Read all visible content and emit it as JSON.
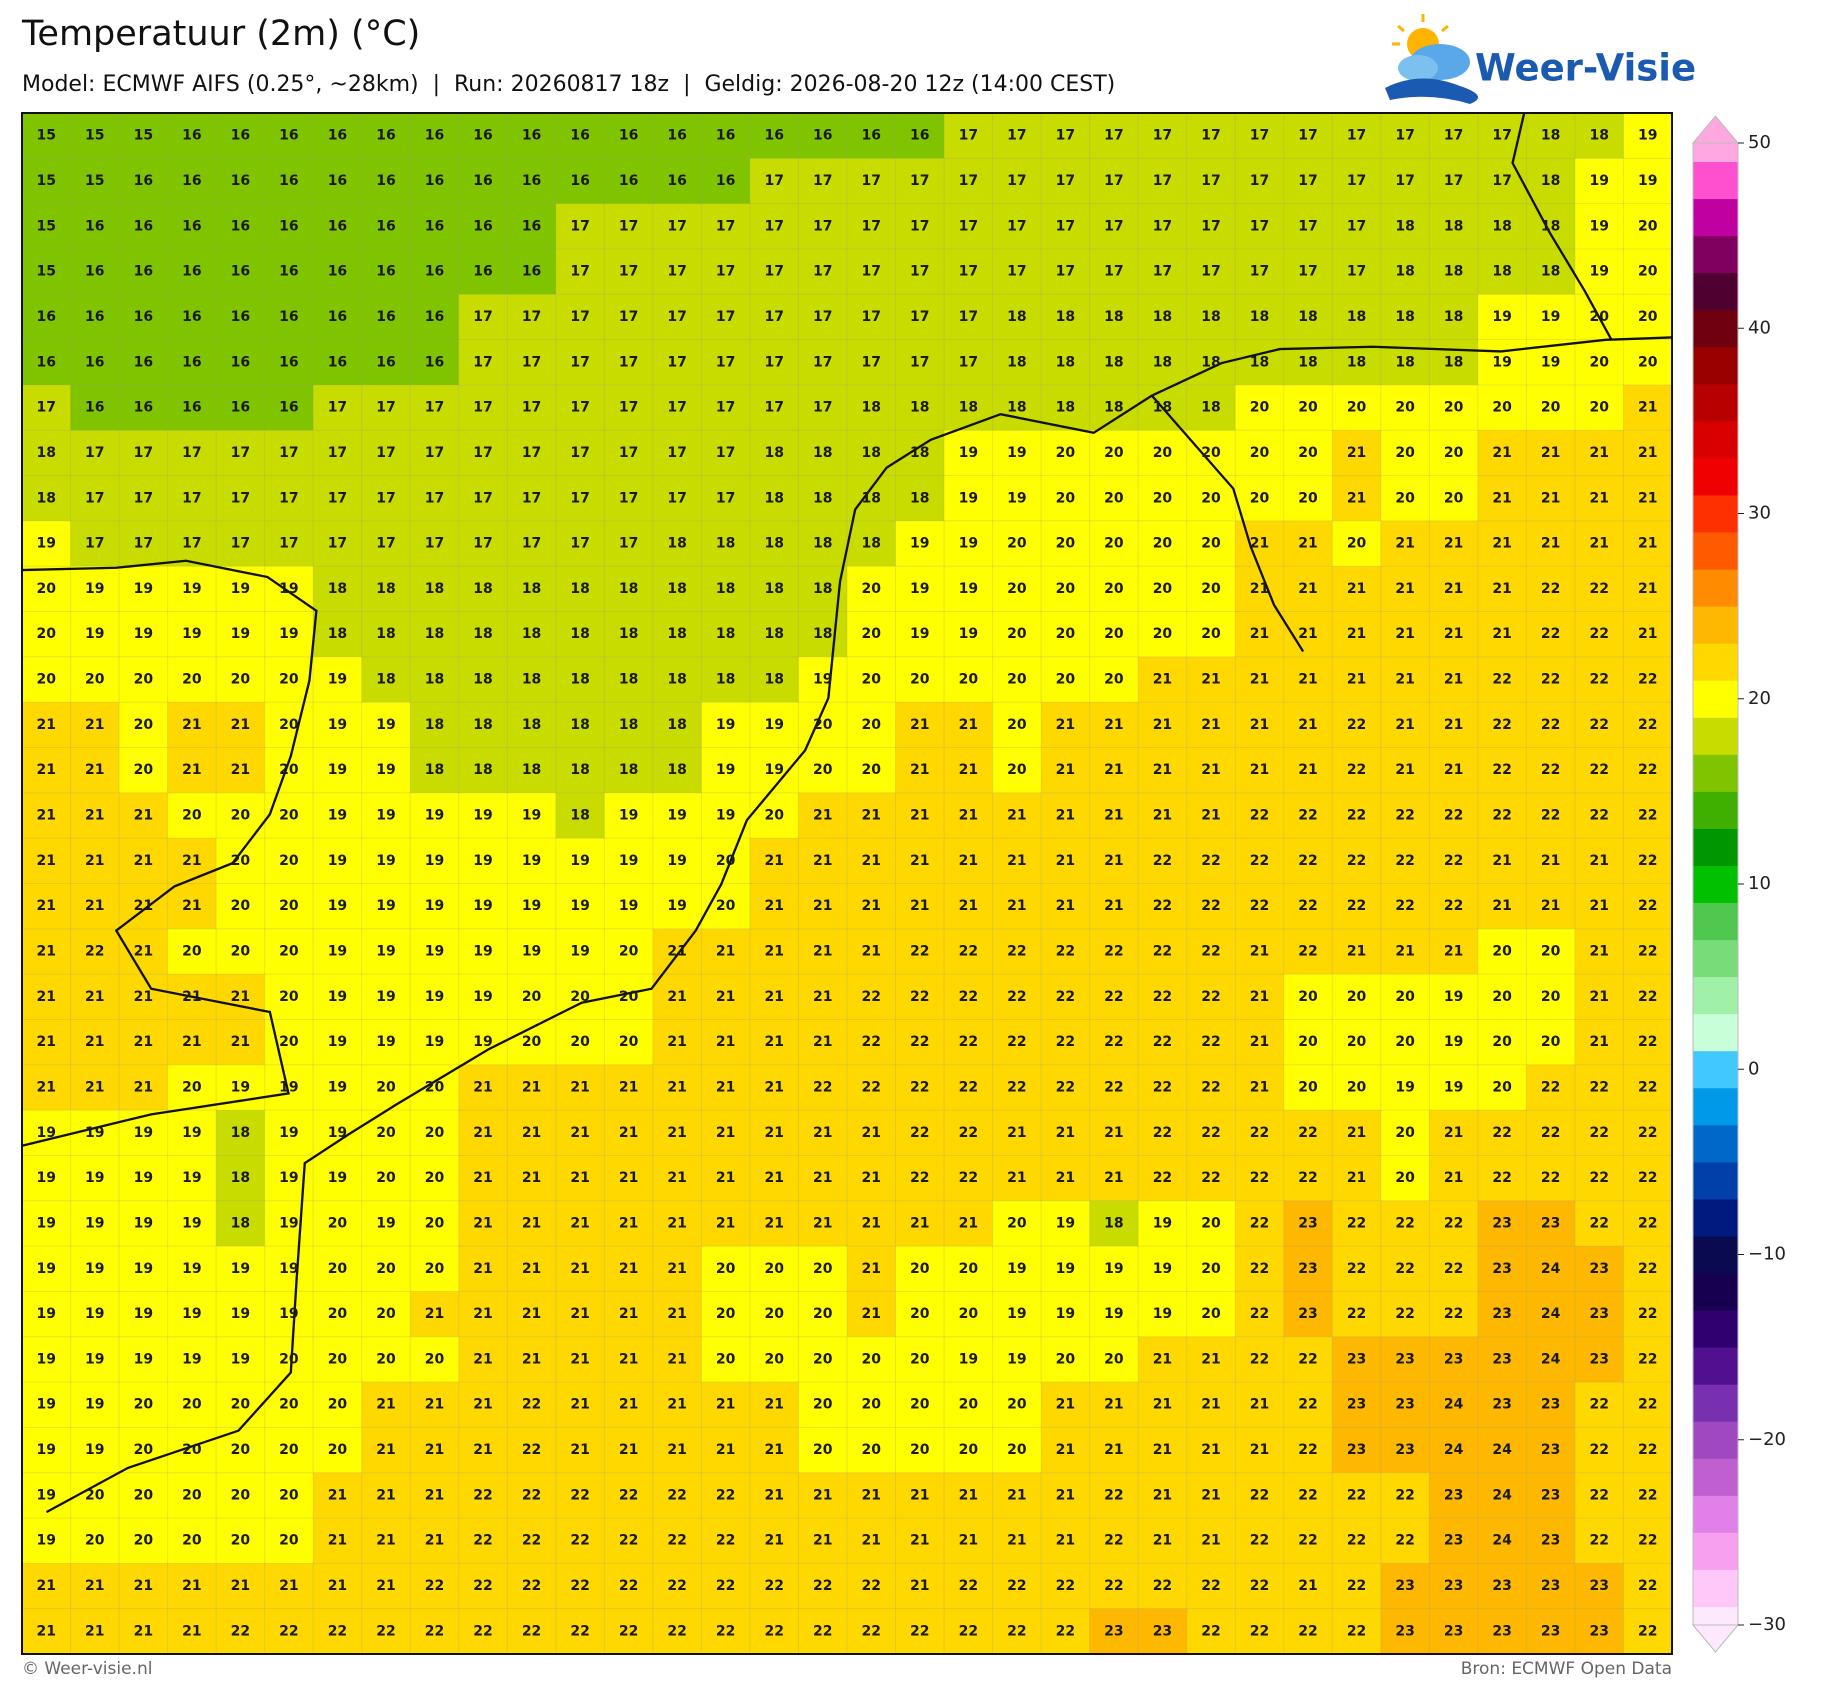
{
  "header": {
    "title": "Temperatuur (2m) (°C)",
    "subtitle": "Model: ECMWF AIFS (0.25°, ~28km)  |  Run: 20260817 18z  |  Geldig: 2026-08-20 12z (14:00 CEST)"
  },
  "logo": "Weer-Visie",
  "map": {
    "values": [
      [
        15,
        15,
        15,
        16,
        16,
        16,
        16,
        16,
        16,
        16,
        16,
        16,
        16,
        16,
        16,
        16,
        16,
        16,
        16,
        17,
        17,
        17,
        17,
        17,
        17,
        17,
        17,
        17,
        17,
        17,
        17,
        18,
        18,
        19
      ],
      [
        15,
        15,
        16,
        16,
        16,
        16,
        16,
        16,
        16,
        16,
        16,
        16,
        16,
        16,
        16,
        17,
        17,
        17,
        17,
        17,
        17,
        17,
        17,
        17,
        17,
        17,
        17,
        17,
        17,
        17,
        17,
        18,
        19,
        19
      ],
      [
        15,
        16,
        16,
        16,
        16,
        16,
        16,
        16,
        16,
        16,
        16,
        17,
        17,
        17,
        17,
        17,
        17,
        17,
        17,
        17,
        17,
        17,
        17,
        17,
        17,
        17,
        17,
        17,
        18,
        18,
        18,
        18,
        19,
        20
      ],
      [
        15,
        16,
        16,
        16,
        16,
        16,
        16,
        16,
        16,
        16,
        16,
        17,
        17,
        17,
        17,
        17,
        17,
        17,
        17,
        17,
        17,
        17,
        17,
        17,
        17,
        17,
        17,
        17,
        18,
        18,
        18,
        18,
        19,
        20
      ],
      [
        16,
        16,
        16,
        16,
        16,
        16,
        16,
        16,
        16,
        17,
        17,
        17,
        17,
        17,
        17,
        17,
        17,
        17,
        17,
        17,
        18,
        18,
        18,
        18,
        18,
        18,
        18,
        18,
        18,
        18,
        19,
        19,
        20,
        20
      ],
      [
        16,
        16,
        16,
        16,
        16,
        16,
        16,
        16,
        16,
        17,
        17,
        17,
        17,
        17,
        17,
        17,
        17,
        17,
        17,
        17,
        18,
        18,
        18,
        18,
        18,
        18,
        18,
        18,
        18,
        18,
        19,
        19,
        20,
        20
      ],
      [
        17,
        16,
        16,
        16,
        16,
        16,
        17,
        17,
        17,
        17,
        17,
        17,
        17,
        17,
        17,
        17,
        17,
        18,
        18,
        18,
        18,
        18,
        18,
        18,
        18,
        20,
        20,
        20,
        20,
        20,
        20,
        20,
        20,
        21
      ],
      [
        18,
        17,
        17,
        17,
        17,
        17,
        17,
        17,
        17,
        17,
        17,
        17,
        17,
        17,
        17,
        18,
        18,
        18,
        18,
        19,
        19,
        20,
        20,
        20,
        20,
        20,
        20,
        21,
        20,
        20,
        21,
        21,
        21,
        21
      ],
      [
        18,
        17,
        17,
        17,
        17,
        17,
        17,
        17,
        17,
        17,
        17,
        17,
        17,
        17,
        17,
        18,
        18,
        18,
        18,
        19,
        19,
        20,
        20,
        20,
        20,
        20,
        20,
        21,
        20,
        20,
        21,
        21,
        21,
        21
      ],
      [
        19,
        17,
        17,
        17,
        17,
        17,
        17,
        17,
        17,
        17,
        17,
        17,
        17,
        18,
        18,
        18,
        18,
        18,
        19,
        19,
        20,
        20,
        20,
        20,
        20,
        21,
        21,
        20,
        21,
        21,
        21,
        21,
        21,
        21
      ],
      [
        20,
        19,
        19,
        19,
        19,
        19,
        18,
        18,
        18,
        18,
        18,
        18,
        18,
        18,
        18,
        18,
        18,
        20,
        19,
        19,
        20,
        20,
        20,
        20,
        20,
        21,
        21,
        21,
        21,
        21,
        21,
        22,
        22,
        21
      ],
      [
        20,
        19,
        19,
        19,
        19,
        19,
        18,
        18,
        18,
        18,
        18,
        18,
        18,
        18,
        18,
        18,
        18,
        20,
        19,
        19,
        20,
        20,
        20,
        20,
        20,
        21,
        21,
        21,
        21,
        21,
        21,
        22,
        22,
        21
      ],
      [
        20,
        20,
        20,
        20,
        20,
        20,
        19,
        18,
        18,
        18,
        18,
        18,
        18,
        18,
        18,
        18,
        19,
        20,
        20,
        20,
        20,
        20,
        20,
        21,
        21,
        21,
        21,
        21,
        21,
        21,
        22,
        22,
        22,
        22
      ],
      [
        21,
        21,
        20,
        21,
        21,
        20,
        19,
        19,
        18,
        18,
        18,
        18,
        18,
        18,
        19,
        19,
        20,
        20,
        21,
        21,
        20,
        21,
        21,
        21,
        21,
        21,
        21,
        22,
        21,
        21,
        22,
        22,
        22,
        22
      ],
      [
        21,
        21,
        20,
        21,
        21,
        20,
        19,
        19,
        18,
        18,
        18,
        18,
        18,
        18,
        19,
        19,
        20,
        20,
        21,
        21,
        20,
        21,
        21,
        21,
        21,
        21,
        21,
        22,
        21,
        21,
        22,
        22,
        22,
        22
      ],
      [
        21,
        21,
        21,
        20,
        20,
        20,
        19,
        19,
        19,
        19,
        19,
        18,
        19,
        19,
        19,
        20,
        21,
        21,
        21,
        21,
        21,
        21,
        21,
        21,
        21,
        22,
        22,
        22,
        22,
        22,
        22,
        22,
        22,
        22
      ],
      [
        21,
        21,
        21,
        21,
        20,
        20,
        19,
        19,
        19,
        19,
        19,
        19,
        19,
        19,
        20,
        21,
        21,
        21,
        21,
        21,
        21,
        21,
        21,
        22,
        22,
        22,
        22,
        22,
        22,
        22,
        21,
        21,
        21,
        22
      ],
      [
        21,
        21,
        21,
        21,
        20,
        20,
        19,
        19,
        19,
        19,
        19,
        19,
        19,
        19,
        20,
        21,
        21,
        21,
        21,
        21,
        21,
        21,
        21,
        22,
        22,
        22,
        22,
        22,
        22,
        22,
        21,
        21,
        21,
        22
      ],
      [
        21,
        22,
        21,
        20,
        20,
        20,
        19,
        19,
        19,
        19,
        19,
        19,
        20,
        21,
        21,
        21,
        21,
        21,
        22,
        22,
        22,
        22,
        22,
        22,
        22,
        21,
        22,
        21,
        21,
        21,
        20,
        20,
        21,
        22
      ],
      [
        21,
        21,
        21,
        21,
        21,
        20,
        19,
        19,
        19,
        19,
        20,
        20,
        20,
        21,
        21,
        21,
        21,
        22,
        22,
        22,
        22,
        22,
        22,
        22,
        22,
        21,
        20,
        20,
        20,
        19,
        20,
        20,
        21,
        22
      ],
      [
        21,
        21,
        21,
        21,
        21,
        20,
        19,
        19,
        19,
        19,
        20,
        20,
        20,
        21,
        21,
        21,
        21,
        22,
        22,
        22,
        22,
        22,
        22,
        22,
        22,
        21,
        20,
        20,
        20,
        19,
        20,
        20,
        21,
        22
      ],
      [
        21,
        21,
        21,
        20,
        19,
        19,
        19,
        20,
        20,
        21,
        21,
        21,
        21,
        21,
        21,
        21,
        22,
        22,
        22,
        22,
        22,
        22,
        22,
        22,
        22,
        21,
        20,
        20,
        19,
        19,
        20,
        22,
        22,
        22
      ],
      [
        19,
        19,
        19,
        19,
        18,
        19,
        19,
        20,
        20,
        21,
        21,
        21,
        21,
        21,
        21,
        21,
        21,
        21,
        22,
        22,
        21,
        21,
        21,
        22,
        22,
        22,
        22,
        21,
        20,
        21,
        22,
        22,
        22,
        22
      ],
      [
        19,
        19,
        19,
        19,
        18,
        19,
        19,
        20,
        20,
        21,
        21,
        21,
        21,
        21,
        21,
        21,
        21,
        21,
        22,
        22,
        21,
        21,
        21,
        22,
        22,
        22,
        22,
        21,
        20,
        21,
        22,
        22,
        22,
        22
      ],
      [
        19,
        19,
        19,
        19,
        18,
        19,
        20,
        19,
        20,
        21,
        21,
        21,
        21,
        21,
        21,
        21,
        21,
        21,
        21,
        21,
        20,
        19,
        18,
        19,
        20,
        22,
        23,
        22,
        22,
        22,
        23,
        23,
        22,
        22
      ],
      [
        19,
        19,
        19,
        19,
        19,
        19,
        20,
        20,
        20,
        21,
        21,
        21,
        21,
        21,
        20,
        20,
        20,
        21,
        20,
        20,
        19,
        19,
        19,
        19,
        20,
        22,
        23,
        22,
        22,
        22,
        23,
        24,
        23,
        22
      ],
      [
        19,
        19,
        19,
        19,
        19,
        19,
        20,
        20,
        21,
        21,
        21,
        21,
        21,
        21,
        20,
        20,
        20,
        21,
        20,
        20,
        19,
        19,
        19,
        19,
        20,
        22,
        23,
        22,
        22,
        22,
        23,
        24,
        23,
        22
      ],
      [
        19,
        19,
        19,
        19,
        19,
        20,
        20,
        20,
        20,
        21,
        21,
        21,
        21,
        21,
        20,
        20,
        20,
        20,
        20,
        19,
        19,
        20,
        20,
        21,
        21,
        22,
        22,
        23,
        23,
        23,
        23,
        24,
        23,
        22
      ],
      [
        19,
        19,
        20,
        20,
        20,
        20,
        20,
        21,
        21,
        21,
        22,
        21,
        21,
        21,
        21,
        21,
        20,
        20,
        20,
        20,
        20,
        21,
        21,
        21,
        21,
        21,
        22,
        23,
        23,
        24,
        23,
        23,
        22,
        22
      ],
      [
        19,
        19,
        20,
        20,
        20,
        20,
        20,
        21,
        21,
        21,
        22,
        21,
        21,
        21,
        21,
        21,
        20,
        20,
        20,
        20,
        20,
        21,
        21,
        21,
        21,
        21,
        22,
        23,
        23,
        24,
        24,
        23,
        22,
        22
      ],
      [
        19,
        20,
        20,
        20,
        20,
        20,
        21,
        21,
        21,
        22,
        22,
        22,
        22,
        22,
        22,
        21,
        21,
        21,
        21,
        21,
        21,
        21,
        22,
        21,
        21,
        22,
        22,
        22,
        22,
        23,
        24,
        23,
        22,
        22
      ],
      [
        19,
        20,
        20,
        20,
        20,
        20,
        21,
        21,
        21,
        22,
        22,
        22,
        22,
        22,
        22,
        21,
        21,
        21,
        21,
        21,
        21,
        21,
        22,
        21,
        21,
        22,
        22,
        22,
        22,
        23,
        24,
        23,
        22,
        22
      ],
      [
        21,
        21,
        21,
        21,
        21,
        21,
        21,
        21,
        22,
        22,
        22,
        22,
        22,
        22,
        22,
        22,
        22,
        22,
        21,
        22,
        22,
        22,
        22,
        22,
        22,
        22,
        21,
        22,
        23,
        23,
        23,
        23,
        23,
        22
      ],
      [
        21,
        21,
        21,
        21,
        22,
        22,
        22,
        22,
        22,
        22,
        22,
        22,
        22,
        22,
        22,
        22,
        22,
        22,
        22,
        22,
        22,
        22,
        23,
        23,
        22,
        22,
        22,
        22,
        23,
        23,
        23,
        23,
        23,
        22
      ]
    ],
    "colorbar": {
      "lim": [
        -30,
        50
      ],
      "ticks": [
        {
          "value": -30,
          "label": "−30"
        },
        {
          "value": -20,
          "label": "−20"
        },
        {
          "value": -10,
          "label": "−10"
        },
        0,
        10,
        20,
        30,
        40,
        50
      ],
      "colors": [
        "#fde8fd",
        "#ffc8f8",
        "#f8a0f0",
        "#e080e8",
        "#c060d0",
        "#a048c0",
        "#7830b0",
        "#501090",
        "#300070",
        "#180050",
        "#0a0a50",
        "#001a80",
        "#0040a8",
        "#0068c8",
        "#0098e8",
        "#40c8ff",
        "#c8ffd8",
        "#a0f0a8",
        "#78dc78",
        "#50c850",
        "#00c000",
        "#009600",
        "#40b000",
        "#80c400",
        "#c8dc00",
        "#ffff00",
        "#ffd800",
        "#ffb800",
        "#ff8c00",
        "#ff5a00",
        "#ff3000",
        "#f00000",
        "#d80000",
        "#b80000",
        "#980000",
        "#700010",
        "#500030",
        "#800060",
        "#c000a0",
        "#ff50d0",
        "#ffa8e0"
      ]
    }
  },
  "footer": {
    "left": "© Weer-visie.nl",
    "right": "Bron: ECMWF Open Data"
  }
}
